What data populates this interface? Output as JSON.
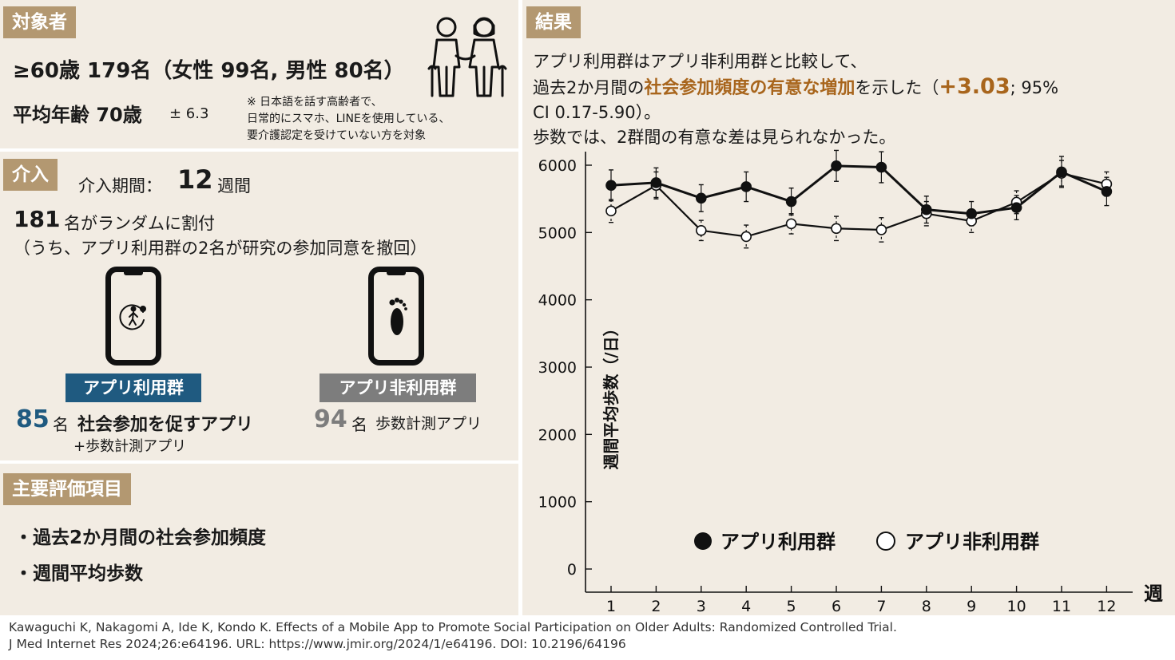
{
  "subjects": {
    "tag": "対象者",
    "line1": "≥60歳 179名（女性 99名, 男性 80名）",
    "line2_main": "平均年齢 70歳",
    "line2_sd": "± 6.3",
    "note_lines": [
      "※ 日本語を話す高齢者で、",
      "日常的にスマホ、LINEを使用している、",
      "要介護認定を受けていない方を対象"
    ],
    "icon": "elderly-couple-icon"
  },
  "intervention": {
    "tag": "介入",
    "period_label": "介入期間：",
    "period_value": "12",
    "period_unit": "週間",
    "random_count": "181",
    "random_text": "名がランダムに割付",
    "withdraw_text": "（うち、アプリ利用群の2名が研究の参加同意を撤回）",
    "app_group": {
      "label": "アプリ利用群",
      "count": "85",
      "unit": "名",
      "desc": "社会参加を促すアプリ",
      "sub": "+歩数計測アプリ",
      "color": "#1f5a80",
      "icon": "walking-person-icon"
    },
    "nonapp_group": {
      "label": "アプリ非利用群",
      "count": "94",
      "unit": "名",
      "desc": "歩数計測アプリ",
      "color": "#7d7d7d",
      "icon": "footprint-icon"
    }
  },
  "outcomes": {
    "tag": "主要評価項目",
    "items": [
      "・過去2か月間の社会参加頻度",
      "・週間平均歩数"
    ]
  },
  "results": {
    "tag": "結果",
    "line1": "アプリ利用群はアプリ非利用群と比較して、",
    "line2_pre": "過去2か月間の",
    "line2_highlight": "社会参加頻度の有意な増加",
    "line2_post": "を示した（",
    "line2_effect": "+3.03",
    "line2_ci": "; 95%",
    "line3": "CI 0.17-5.90）。",
    "line4": "歩数では、2群間の有意な差は見られなかった。",
    "highlight_color": "#a8651c"
  },
  "chart_data": {
    "type": "line",
    "ylabel": "週間平均歩数（/日）",
    "xlabel": "週",
    "x": [
      1,
      2,
      3,
      4,
      5,
      6,
      7,
      8,
      9,
      10,
      11,
      12
    ],
    "yticks": [
      0,
      1000,
      2000,
      3000,
      4000,
      5000,
      6000
    ],
    "ylim": [
      0,
      6000
    ],
    "legend_position": "bottom",
    "series": [
      {
        "name": "アプリ利用群",
        "marker": "filled-circle",
        "values": [
          5700,
          5740,
          5510,
          5680,
          5460,
          5990,
          5970,
          5340,
          5280,
          5370,
          5900,
          5610
        ],
        "error": [
          230,
          220,
          200,
          220,
          200,
          230,
          230,
          200,
          180,
          180,
          230,
          210
        ]
      },
      {
        "name": "アプリ非利用群",
        "marker": "open-circle",
        "values": [
          5320,
          5700,
          5030,
          4940,
          5130,
          5060,
          5040,
          5280,
          5170,
          5450,
          5880,
          5720
        ],
        "error": [
          170,
          200,
          150,
          170,
          150,
          180,
          180,
          180,
          170,
          170,
          190,
          180
        ]
      }
    ]
  },
  "citation": {
    "line1": "Kawaguchi K, Nakagomi A, Ide K, Kondo K. Effects of a Mobile App to Promote Social Participation on Older Adults: Randomized Controlled Trial.",
    "line2": "J Med Internet Res 2024;26:e64196. URL: https://www.jmir.org/2024/1/e64196. DOI: 10.2196/64196"
  }
}
